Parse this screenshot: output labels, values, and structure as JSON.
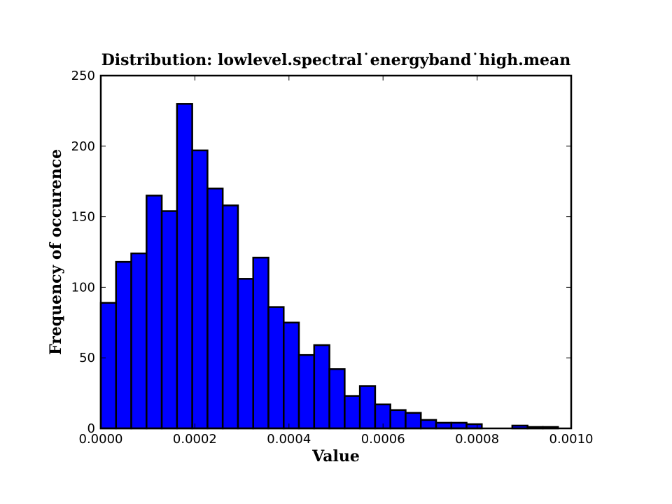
{
  "chart_data": {
    "type": "bar",
    "title": "Distribution: lowlevel.spectral˙energyband˙high.mean",
    "xlabel": "Value",
    "ylabel": "Frequency of occurence",
    "xlim": [
      0.0,
      0.001
    ],
    "ylim": [
      0,
      250
    ],
    "x_ticks": [
      0.0,
      0.0002,
      0.0004,
      0.0006,
      0.0008,
      0.001
    ],
    "x_tick_labels": [
      "0.0000",
      "0.0002",
      "0.0004",
      "0.0006",
      "0.0008",
      "0.0010"
    ],
    "y_ticks": [
      0,
      50,
      100,
      150,
      200,
      250
    ],
    "y_tick_labels": [
      "0",
      "50",
      "100",
      "150",
      "200",
      "250"
    ],
    "grid": false,
    "bar_color": "#0000ff",
    "edge_color": "#000000",
    "bins": [
      {
        "start": 0.0,
        "end": 3.24e-05,
        "value": 89
      },
      {
        "start": 3.24e-05,
        "end": 6.48e-05,
        "value": 118
      },
      {
        "start": 6.48e-05,
        "end": 9.72e-05,
        "value": 124
      },
      {
        "start": 9.72e-05,
        "end": 0.0001296,
        "value": 165
      },
      {
        "start": 0.0001296,
        "end": 0.000162,
        "value": 154
      },
      {
        "start": 0.000162,
        "end": 0.0001944,
        "value": 230
      },
      {
        "start": 0.0001944,
        "end": 0.0002268,
        "value": 197
      },
      {
        "start": 0.0002268,
        "end": 0.0002592,
        "value": 170
      },
      {
        "start": 0.0002592,
        "end": 0.0002916,
        "value": 158
      },
      {
        "start": 0.0002916,
        "end": 0.000324,
        "value": 106
      },
      {
        "start": 0.000324,
        "end": 0.0003564,
        "value": 121
      },
      {
        "start": 0.0003564,
        "end": 0.0003888,
        "value": 86
      },
      {
        "start": 0.0003888,
        "end": 0.0004212,
        "value": 75
      },
      {
        "start": 0.0004212,
        "end": 0.0004536,
        "value": 52
      },
      {
        "start": 0.0004536,
        "end": 0.000486,
        "value": 59
      },
      {
        "start": 0.000486,
        "end": 0.0005184,
        "value": 42
      },
      {
        "start": 0.0005184,
        "end": 0.0005508,
        "value": 23
      },
      {
        "start": 0.0005508,
        "end": 0.0005832,
        "value": 30
      },
      {
        "start": 0.0005832,
        "end": 0.0006156,
        "value": 17
      },
      {
        "start": 0.0006156,
        "end": 0.000648,
        "value": 13
      },
      {
        "start": 0.000648,
        "end": 0.0006804,
        "value": 11
      },
      {
        "start": 0.0006804,
        "end": 0.0007128,
        "value": 6
      },
      {
        "start": 0.0007128,
        "end": 0.0007452,
        "value": 4
      },
      {
        "start": 0.0007452,
        "end": 0.0007776,
        "value": 4
      },
      {
        "start": 0.0007776,
        "end": 0.00081,
        "value": 3
      },
      {
        "start": 0.00081,
        "end": 0.0008424,
        "value": 0
      },
      {
        "start": 0.0008424,
        "end": 0.0008748,
        "value": 0
      },
      {
        "start": 0.0008748,
        "end": 0.0009072,
        "value": 2
      },
      {
        "start": 0.0009072,
        "end": 0.0009396,
        "value": 1
      },
      {
        "start": 0.0009396,
        "end": 0.000972,
        "value": 1
      }
    ]
  }
}
